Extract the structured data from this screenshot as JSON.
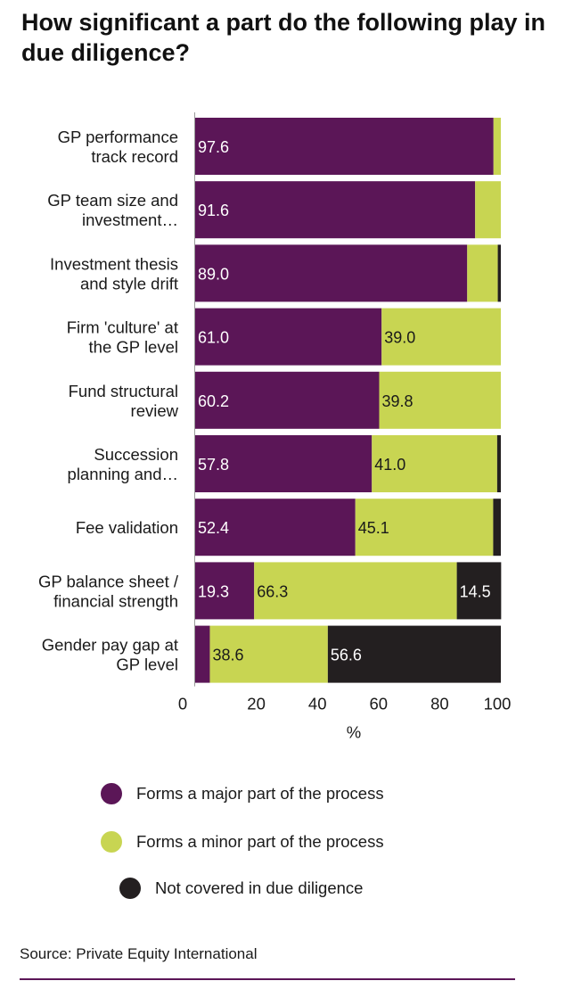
{
  "title": "How significant a part do the following play in due diligence?",
  "source": "Source: Private Equity International",
  "colors": {
    "major": "#5b1657",
    "minor": "#c8d552",
    "not_covered": "#231f20"
  },
  "chart_data": {
    "type": "bar",
    "orientation": "horizontal",
    "stacked": true,
    "categories": [
      [
        "GP performance",
        "track record"
      ],
      [
        "GP team size and",
        "investment…"
      ],
      [
        "Investment thesis",
        "and style drift"
      ],
      [
        "Firm 'culture' at",
        "the GP level"
      ],
      [
        "Fund structural",
        "review"
      ],
      [
        "Succession",
        "planning and…"
      ],
      [
        "Fee validation"
      ],
      [
        "GP balance sheet /",
        "financial strength"
      ],
      [
        "Gender pay gap at",
        "GP level"
      ]
    ],
    "series": [
      {
        "name": "Forms a major part of the process",
        "color": "#5b1657",
        "values": [
          97.6,
          91.6,
          89.0,
          61.0,
          60.2,
          57.8,
          52.4,
          19.3,
          4.8
        ]
      },
      {
        "name": "Forms a minor part of the process",
        "color": "#c8d552",
        "values": [
          2.4,
          8.4,
          10.0,
          39.0,
          39.8,
          41.0,
          45.1,
          66.3,
          38.6
        ]
      },
      {
        "name": "Not covered in due diligence",
        "color": "#231f20",
        "values": [
          0,
          0,
          1.0,
          0,
          0,
          1.2,
          2.5,
          14.5,
          56.6
        ]
      }
    ],
    "data_labels": [
      [
        "97.6",
        "",
        ""
      ],
      [
        "91.6",
        "",
        ""
      ],
      [
        "89.0",
        "",
        ""
      ],
      [
        "61.0",
        "39.0",
        ""
      ],
      [
        "60.2",
        "39.8",
        ""
      ],
      [
        "57.8",
        "41.0",
        ""
      ],
      [
        "52.4",
        "45.1",
        ""
      ],
      [
        "19.3",
        "66.3",
        "14.5"
      ],
      [
        "",
        "38.6",
        "56.6"
      ]
    ],
    "x_ticks": [
      "0",
      "20",
      "40",
      "60",
      "80",
      "100"
    ],
    "xlabel": "%",
    "xlim": [
      0,
      100
    ],
    "grid": false,
    "legend_position": "bottom"
  }
}
